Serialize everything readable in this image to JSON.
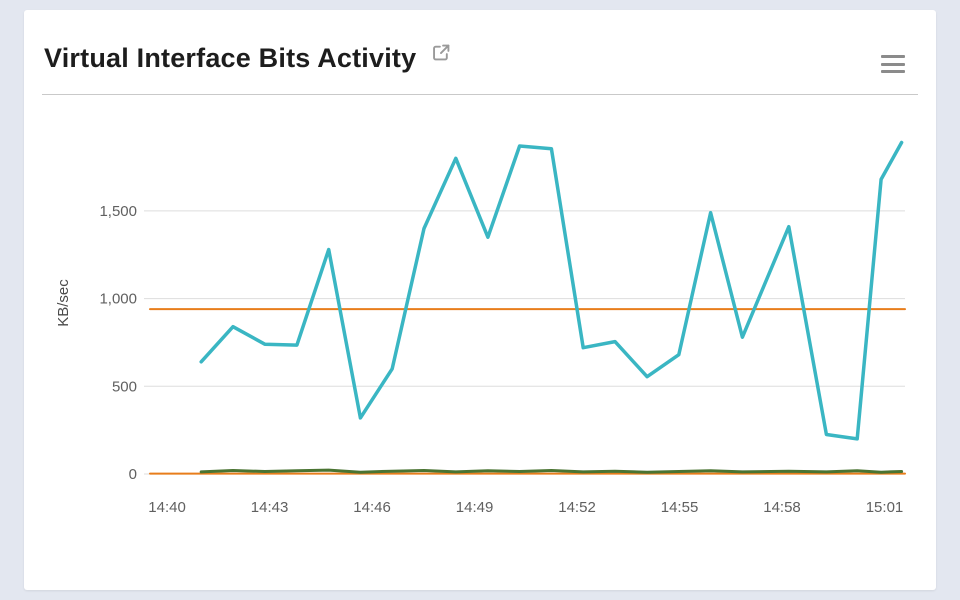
{
  "page": {
    "background_color": "#e3e7f0"
  },
  "card": {
    "title": "Virtual Interface Bits Activity",
    "title_icon": "external-link-icon",
    "menu_icon": "menu-icon"
  },
  "chart_data": {
    "type": "line",
    "title": "Virtual Interface Bits Activity",
    "xlabel": "",
    "ylabel": "KB/sec",
    "ylim": [
      0,
      1950
    ],
    "x_domain": [
      -0.5,
      21.6
    ],
    "yticks": [
      0,
      500,
      1000,
      1500
    ],
    "ytick_labels": [
      "0",
      "500",
      "1,000",
      "1,500"
    ],
    "xtick_labels": [
      "14:40",
      "14:43",
      "14:46",
      "14:49",
      "14:52",
      "14:55",
      "14:58",
      "15:01"
    ],
    "xtick_pos": [
      0,
      3,
      6,
      9,
      12,
      15,
      18,
      21
    ],
    "grid": true,
    "grid_color": "#dddddd",
    "legend_position": "none",
    "colors": {
      "teal": "#3ab6c3",
      "orange": "#e87d1b",
      "green": "#4a7432"
    },
    "series": [
      {
        "name": "orange-threshold-line",
        "color": "#e87d1b",
        "width": 2,
        "x": [
          -0.5,
          21.6
        ],
        "y": [
          940,
          940
        ]
      },
      {
        "name": "orange-zero-line",
        "color": "#e87d1b",
        "width": 2,
        "x": [
          -0.5,
          21.6
        ],
        "y": [
          2,
          2
        ]
      },
      {
        "name": "green-line",
        "color": "#4a7432",
        "width": 3,
        "x": [
          1,
          1.93,
          2.86,
          3.8,
          4.73,
          5.66,
          6.59,
          7.52,
          8.45,
          9.39,
          10.32,
          11.25,
          12.18,
          13.11,
          14.05,
          14.98,
          15.91,
          16.84,
          18.2,
          19.3,
          20.2,
          20.9,
          21.5
        ],
        "y": [
          12,
          20,
          14,
          18,
          22,
          10,
          16,
          20,
          12,
          18,
          14,
          20,
          12,
          16,
          10,
          14,
          18,
          12,
          16,
          12,
          18,
          10,
          14
        ]
      },
      {
        "name": "teal-line",
        "color": "#3ab6c3",
        "width": 3.5,
        "x": [
          1,
          1.93,
          2.86,
          3.8,
          4.73,
          5.66,
          6.59,
          7.52,
          8.45,
          9.39,
          10.32,
          11.25,
          12.18,
          13.11,
          14.05,
          14.98,
          15.91,
          16.84,
          18.2,
          19.3,
          20.2,
          20.9,
          21.5
        ],
        "y": [
          640,
          840,
          740,
          735,
          1280,
          320,
          600,
          1400,
          1800,
          1350,
          1870,
          1855,
          720,
          755,
          555,
          680,
          1490,
          780,
          1410,
          225,
          200,
          1680,
          1890
        ]
      }
    ]
  }
}
